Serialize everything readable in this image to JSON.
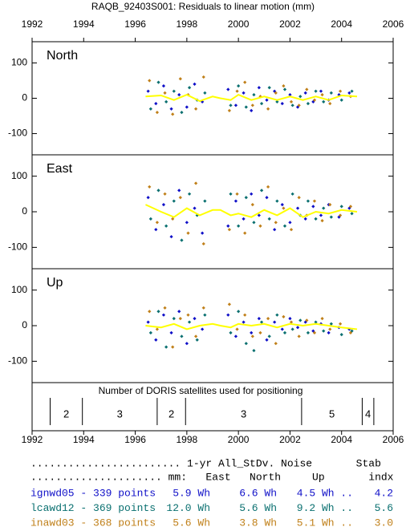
{
  "title": "RAQB_92403S001: Residuals to linear motion (mm)",
  "chart_data": [
    {
      "type": "scatter",
      "title": "North",
      "xlim": [
        1992,
        2006
      ],
      "xticks": [
        1992,
        1994,
        1996,
        1998,
        2000,
        2002,
        2004,
        2006
      ],
      "ylim": [
        -160,
        160
      ],
      "yticks": [
        -100,
        0,
        100
      ],
      "series": [
        {
          "name": "ignwd05",
          "color": "#1010c8",
          "x": [
            1996.5,
            1996.8,
            1997.1,
            1997.4,
            1997.7,
            1998.0,
            1998.3,
            1998.6,
            1999.6,
            1999.9,
            2000.2,
            2000.5,
            2000.8,
            2001.1,
            2001.4,
            2001.7,
            2002.0,
            2002.3,
            2002.6,
            2002.9,
            2003.2,
            2003.5,
            2003.9,
            2004.3
          ],
          "values": [
            20,
            -15,
            35,
            -30,
            10,
            -25,
            40,
            -10,
            25,
            -20,
            15,
            -35,
            30,
            -5,
            20,
            -15,
            10,
            -25,
            15,
            -10,
            20,
            -5,
            10,
            15
          ]
        },
        {
          "name": "lcawd12",
          "color": "#0a7070",
          "x": [
            1996.6,
            1996.9,
            1997.2,
            1997.5,
            1997.8,
            1998.1,
            1998.4,
            1998.7,
            1999.7,
            2000.0,
            2000.3,
            2000.6,
            2000.9,
            2001.2,
            2001.5,
            2001.8,
            2002.1,
            2002.4,
            2002.7,
            2003.0,
            2003.3,
            2003.6,
            2004.0,
            2004.4
          ],
          "values": [
            -30,
            45,
            -10,
            20,
            -40,
            30,
            -5,
            15,
            -20,
            35,
            -25,
            10,
            -15,
            30,
            -10,
            25,
            -20,
            5,
            -15,
            20,
            -10,
            15,
            -5,
            20
          ]
        },
        {
          "name": "inawd03",
          "color": "#c0801a",
          "x": [
            1996.55,
            1996.85,
            1997.15,
            1997.45,
            1997.75,
            1998.05,
            1998.35,
            1998.65,
            1999.65,
            1999.95,
            2000.25,
            2000.55,
            2000.85,
            2001.15,
            2001.45,
            2001.75,
            2002.05,
            2002.35,
            2002.65,
            2002.95,
            2003.25,
            2003.55,
            2003.95,
            2004.35
          ],
          "values": [
            50,
            -40,
            15,
            -45,
            55,
            10,
            -30,
            60,
            -35,
            20,
            45,
            -20,
            5,
            -30,
            15,
            35,
            -10,
            -20,
            25,
            -5,
            10,
            -15,
            20,
            5
          ]
        },
        {
          "type": "line",
          "color": "#ffff00",
          "x": [
            1996.4,
            1997,
            1997.5,
            1998,
            1998.5,
            1999,
            1999.3,
            1999.7,
            2000,
            2000.5,
            2001,
            2001.5,
            2002,
            2002.5,
            2003,
            2003.5,
            2004,
            2004.6
          ],
          "values": [
            5,
            8,
            -5,
            10,
            -8,
            5,
            0,
            -5,
            10,
            -5,
            5,
            -5,
            5,
            -5,
            5,
            -5,
            8,
            5
          ]
        }
      ]
    },
    {
      "type": "scatter",
      "title": "East",
      "xlim": [
        1992,
        2006
      ],
      "ylim": [
        -160,
        160
      ],
      "yticks": [
        -100,
        0,
        100
      ],
      "series": [
        {
          "name": "ignwd05",
          "color": "#1010c8",
          "x": [
            1996.5,
            1996.8,
            1997.1,
            1997.4,
            1997.7,
            1998.0,
            1998.3,
            1998.6,
            1999.6,
            1999.9,
            2000.2,
            2000.5,
            2000.8,
            2001.1,
            2001.4,
            2001.7,
            2002.0,
            2002.3,
            2002.6,
            2002.9,
            2003.2,
            2003.5,
            2003.9,
            2004.3
          ],
          "values": [
            40,
            -50,
            20,
            -70,
            60,
            -30,
            10,
            -60,
            -40,
            30,
            -20,
            50,
            -10,
            40,
            -50,
            20,
            -30,
            10,
            -20,
            15,
            -10,
            20,
            -15,
            10
          ]
        },
        {
          "name": "lcawd12",
          "color": "#0a7070",
          "x": [
            1996.6,
            1996.9,
            1997.2,
            1997.5,
            1997.8,
            1998.1,
            1998.4,
            1998.7,
            1999.7,
            2000.0,
            2000.3,
            2000.6,
            2000.9,
            2001.2,
            2001.5,
            2001.8,
            2002.1,
            2002.4,
            2002.7,
            2003.0,
            2003.3,
            2003.6,
            2004.0,
            2004.4
          ],
          "values": [
            -20,
            60,
            -40,
            30,
            -80,
            50,
            -10,
            30,
            50,
            -40,
            40,
            -30,
            60,
            -20,
            30,
            -40,
            50,
            -10,
            30,
            -20,
            10,
            -15,
            15,
            -5
          ]
        },
        {
          "name": "inawd03",
          "color": "#c0801a",
          "x": [
            1996.55,
            1996.85,
            1997.15,
            1997.45,
            1997.75,
            1998.05,
            1998.35,
            1998.65,
            1999.65,
            1999.95,
            2000.25,
            2000.55,
            2000.85,
            2001.15,
            2001.45,
            2001.75,
            2002.05,
            2002.35,
            2002.65,
            2002.95,
            2003.25,
            2003.55,
            2003.95,
            2004.35
          ],
          "values": [
            70,
            -30,
            50,
            -20,
            40,
            -60,
            80,
            -90,
            -50,
            50,
            -60,
            20,
            -40,
            70,
            -30,
            10,
            -50,
            40,
            -10,
            30,
            -25,
            20,
            -10,
            15
          ]
        },
        {
          "type": "line",
          "color": "#ffff00",
          "x": [
            1996.4,
            1997,
            1997.5,
            1998,
            1998.5,
            1999,
            1999.3,
            1999.7,
            2000,
            2000.5,
            2001,
            2001.5,
            2002,
            2002.5,
            2003,
            2003.5,
            2004,
            2004.6
          ],
          "values": [
            20,
            0,
            -15,
            10,
            -10,
            5,
            5,
            -10,
            -5,
            -15,
            5,
            -10,
            10,
            -15,
            0,
            -5,
            5,
            0
          ]
        }
      ]
    },
    {
      "type": "scatter",
      "title": "Up",
      "xlim": [
        1992,
        2006
      ],
      "ylim": [
        -160,
        160
      ],
      "yticks": [
        -100,
        0,
        100
      ],
      "series": [
        {
          "name": "ignwd05",
          "color": "#1010c8",
          "x": [
            1996.5,
            1996.8,
            1997.1,
            1997.4,
            1997.7,
            1998.0,
            1998.3,
            1998.6,
            1999.6,
            1999.9,
            2000.2,
            2000.5,
            2000.8,
            2001.1,
            2001.4,
            2001.7,
            2002.0,
            2002.3,
            2002.6,
            2002.9,
            2003.2,
            2003.5,
            2003.9,
            2004.3
          ],
          "values": [
            10,
            -40,
            30,
            -20,
            40,
            -50,
            20,
            -10,
            30,
            -30,
            10,
            -20,
            20,
            -40,
            10,
            -10,
            20,
            -5,
            10,
            -15,
            5,
            -20,
            -5,
            -10
          ]
        },
        {
          "name": "lcawd12",
          "color": "#0a7070",
          "x": [
            1996.6,
            1996.9,
            1997.2,
            1997.5,
            1997.8,
            1998.1,
            1998.4,
            1998.7,
            1999.7,
            2000.0,
            2000.3,
            2000.6,
            2000.9,
            2001.2,
            2001.5,
            2001.8,
            2002.1,
            2002.4,
            2002.7,
            2003.0,
            2003.3,
            2003.6,
            2004.0,
            2004.4
          ],
          "values": [
            -20,
            40,
            -60,
            20,
            -30,
            10,
            -40,
            30,
            -20,
            40,
            -50,
            -70,
            10,
            -30,
            30,
            -20,
            -10,
            15,
            -20,
            10,
            -15,
            5,
            -25,
            -15
          ]
        },
        {
          "name": "inawd03",
          "color": "#c0801a",
          "x": [
            1996.55,
            1996.85,
            1997.15,
            1997.45,
            1997.75,
            1998.05,
            1998.35,
            1998.65,
            1999.65,
            1999.95,
            2000.25,
            2000.55,
            2000.85,
            2001.15,
            2001.45,
            2001.75,
            2002.05,
            2002.35,
            2002.65,
            2002.95,
            2003.25,
            2003.55,
            2003.95,
            2004.35
          ],
          "values": [
            40,
            -10,
            50,
            -60,
            20,
            30,
            -30,
            50,
            60,
            -10,
            30,
            -30,
            -20,
            20,
            -50,
            25,
            10,
            -30,
            15,
            -20,
            20,
            -10,
            5,
            -20
          ]
        },
        {
          "type": "line",
          "color": "#ffff00",
          "x": [
            1996.4,
            1997,
            1997.5,
            1998,
            1998.5,
            1999,
            1999.3,
            1999.7,
            2000,
            2000.5,
            2001,
            2001.5,
            2002,
            2002.5,
            2003,
            2003.5,
            2004,
            2004.6
          ],
          "values": [
            0,
            -5,
            5,
            -10,
            0,
            5,
            0,
            -5,
            5,
            0,
            5,
            -5,
            5,
            0,
            5,
            0,
            -5,
            -10
          ]
        }
      ]
    },
    {
      "type": "timeline",
      "title": "Number of DORIS satellites used for positioning",
      "xlim": [
        1992,
        2006
      ],
      "xticks": [
        1992,
        1994,
        1996,
        1998,
        2000,
        2002,
        2004,
        2006
      ],
      "edges": [
        1992.7,
        1993.95,
        1996.85,
        1997.95,
        2002.45,
        2004.8,
        2005.25
      ],
      "values": [
        2,
        3,
        2,
        3,
        5,
        4
      ]
    }
  ],
  "table": {
    "header": [
      "........................ 1-yr All_StDv. Noise       Stab",
      "..................... mm:   East   North     Up       indx"
    ],
    "rows": [
      {
        "color": "#1010c8",
        "cells": [
          "ignwd05 - 339 points",
          "5.9 Wh",
          "6.6 Wh",
          "4.5 Wh ..",
          "4.2"
        ]
      },
      {
        "color": "#0a7070",
        "cells": [
          "lcawd12 - 369 points",
          "12.0 Wh",
          "5.6 Wh",
          "9.2 Wh ..",
          "5.6"
        ]
      },
      {
        "color": "#c0801a",
        "cells": [
          "inawd03 - 368 points",
          "5.6 Wh",
          "3.8 Wh",
          "5.1 Wh ..",
          "3.0"
        ]
      }
    ]
  }
}
